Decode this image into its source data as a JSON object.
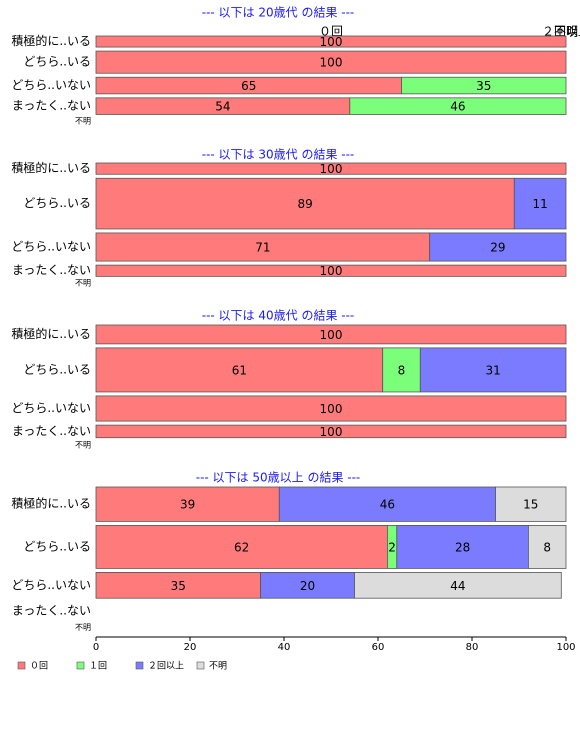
{
  "chart_data": {
    "type": "bar",
    "orientation": "horizontal-stacked",
    "xlim": [
      0,
      100
    ],
    "x_ticks": [
      0,
      20,
      40,
      60,
      80,
      100
    ],
    "legend": {
      "placement": "bottom-left",
      "entries": [
        {
          "name": "０回",
          "color": "#ff7b7b"
        },
        {
          "name": "１回",
          "color": "#7bff7b"
        },
        {
          "name": "２回以上",
          "color": "#7b7bff"
        },
        {
          "name": "不明",
          "color": "#dcdcdc"
        }
      ]
    },
    "header_labels": [
      "０回",
      "２回以上",
      "不明"
    ],
    "panels": [
      {
        "title": "--- 以下は 20歳代 の結果 ---",
        "rows": [
          {
            "label": "積極的に..いる",
            "weight": 2,
            "values": [
              100,
              0,
              0,
              0
            ]
          },
          {
            "label": "どちら..いる",
            "weight": 4,
            "values": [
              100,
              0,
              0,
              0
            ]
          },
          {
            "label": "どちら..いない",
            "weight": 3,
            "values": [
              65,
              35,
              0,
              0
            ]
          },
          {
            "label": "まったく..ない",
            "weight": 3,
            "values": [
              54,
              46,
              0,
              0
            ]
          },
          {
            "label": "不明",
            "weight": 1,
            "small": true,
            "values": null
          }
        ]
      },
      {
        "title": "--- 以下は 30歳代 の結果 ---",
        "rows": [
          {
            "label": "積極的に..いる",
            "weight": 2,
            "values": [
              100,
              0,
              0,
              0
            ]
          },
          {
            "label": "どちら..いる",
            "weight": 9,
            "values": [
              89,
              0,
              11,
              0
            ]
          },
          {
            "label": "どちら..いない",
            "weight": 5,
            "values": [
              71,
              0,
              29,
              0
            ]
          },
          {
            "label": "まったく..ない",
            "weight": 2,
            "values": [
              100,
              0,
              0,
              0
            ]
          },
          {
            "label": "不明",
            "weight": 1,
            "small": true,
            "values": null
          }
        ]
      },
      {
        "title": "--- 以下は 40歳代 の結果 ---",
        "rows": [
          {
            "label": "積極的に..いる",
            "weight": 3,
            "values": [
              100,
              0,
              0,
              0
            ]
          },
          {
            "label": "どちら..いる",
            "weight": 7,
            "values": [
              61,
              8,
              31,
              0
            ]
          },
          {
            "label": "どちら..いない",
            "weight": 4,
            "values": [
              100,
              0,
              0,
              0
            ]
          },
          {
            "label": "まったく..ない",
            "weight": 2,
            "values": [
              100,
              0,
              0,
              0
            ]
          },
          {
            "label": "不明",
            "weight": 1,
            "small": true,
            "values": null
          }
        ]
      },
      {
        "title": "--- 以下は 50歳以上 の結果 ---",
        "rows": [
          {
            "label": "積極的に..いる",
            "weight": 4,
            "values": [
              39,
              0,
              46,
              15
            ]
          },
          {
            "label": "どちら..いる",
            "weight": 5,
            "values": [
              62,
              2,
              28,
              8
            ]
          },
          {
            "label": "どちら..いない",
            "weight": 3,
            "values": [
              35,
              0,
              20,
              44
            ]
          },
          {
            "label": "まったく..ない",
            "weight": 2,
            "values": null
          },
          {
            "label": "不明",
            "weight": 1,
            "small": true,
            "values": null
          }
        ]
      }
    ]
  }
}
